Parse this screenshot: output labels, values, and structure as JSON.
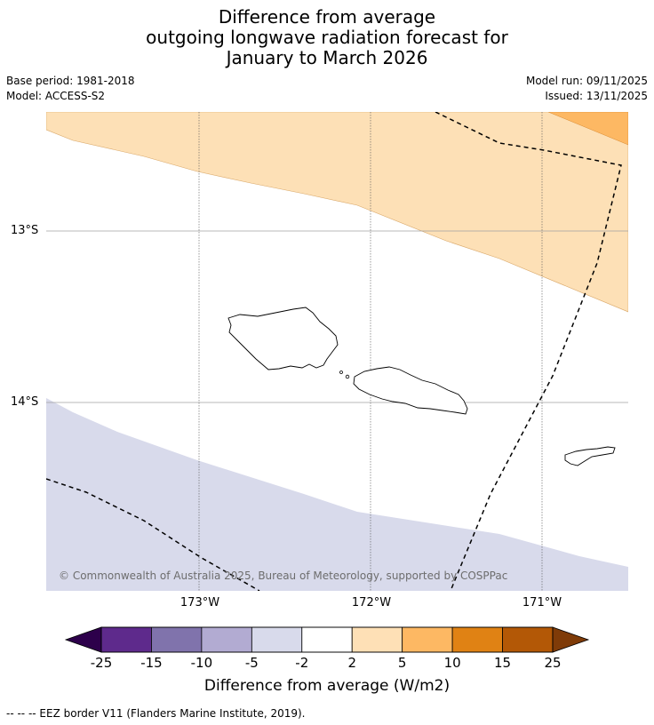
{
  "title": {
    "line1": "Difference from average",
    "line2": "outgoing longwave radiation forecast for",
    "line3": "January to March 2026"
  },
  "meta": {
    "base_period": "Base period: 1981-2018",
    "model": "Model: ACCESS-S2",
    "model_run": "Model run: 09/11/2025",
    "issued": "Issued: 13/11/2025"
  },
  "map": {
    "copyright": "© Commonwealth of Australia 2025, Bureau of Meteorology, supported by COSPPac",
    "lat_labels": [
      "13°S",
      "14°S"
    ],
    "lon_labels": [
      "173°W",
      "172°W",
      "171°W"
    ]
  },
  "colorbar": {
    "ticks": [
      "-25",
      "-15",
      "-10",
      "-5",
      "-2",
      "2",
      "5",
      "10",
      "15",
      "25"
    ],
    "colors": [
      "#2d004b",
      "#5e2a8c",
      "#8073ac",
      "#b2abd2",
      "#d8daeb",
      "#ffffff",
      "#fee0b6",
      "#fdb863",
      "#e08214",
      "#b35806",
      "#7f3b08"
    ],
    "label": "Difference from average (W/m2)"
  },
  "footnote": "--  --  -- EEZ border V11 (Flanders Marine Institute, 2019)."
}
